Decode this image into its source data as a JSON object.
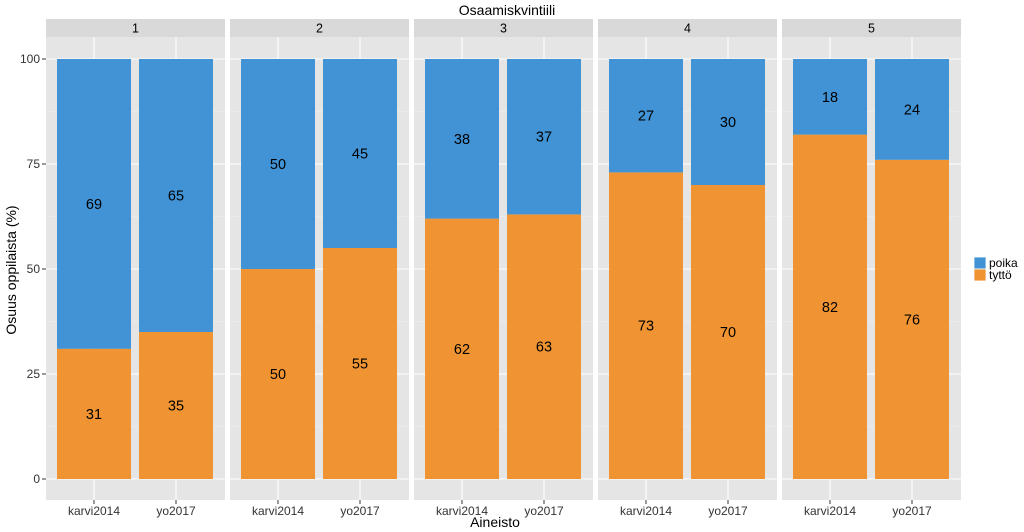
{
  "chart_data": {
    "type": "bar",
    "stacked": true,
    "percent": true,
    "title": "Osaamiskvintiili",
    "xlabel": "Aineisto",
    "ylabel": "Osuus oppilaista (%)",
    "ylim": [
      0,
      100
    ],
    "yticks": [
      "0",
      "25",
      "50",
      "75",
      "100"
    ],
    "categories": [
      "karvi2014",
      "yo2017"
    ],
    "panels": [
      {
        "label": "1",
        "tytto": [
          31,
          35
        ],
        "poika": [
          69,
          65
        ]
      },
      {
        "label": "2",
        "tytto": [
          50,
          55
        ],
        "poika": [
          50,
          45
        ]
      },
      {
        "label": "3",
        "tytto": [
          62,
          63
        ],
        "poika": [
          38,
          37
        ]
      },
      {
        "label": "4",
        "tytto": [
          73,
          70
        ],
        "poika": [
          27,
          30
        ]
      },
      {
        "label": "5",
        "tytto": [
          82,
          76
        ],
        "poika": [
          18,
          24
        ]
      }
    ],
    "legend": [
      {
        "key": "poika",
        "label": "poika",
        "color": "#4193d6"
      },
      {
        "key": "tytto",
        "label": "tyttö",
        "color": "#f09433"
      }
    ],
    "legend_position": "right",
    "grid": true
  }
}
